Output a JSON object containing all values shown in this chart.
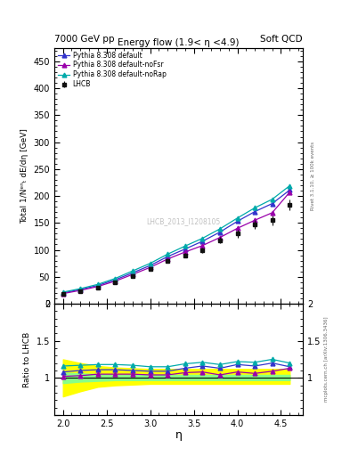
{
  "title_left": "7000 GeV pp",
  "title_right": "Soft QCD",
  "main_title": "Energy flow (1.9< η <4.9)",
  "ylabel_main": "Total 1/Nᵉⁿₜ dE/dη [GeV]",
  "ylabel_ratio": "Ratio to LHCB",
  "xlabel": "η",
  "rivet_label": "Rivet 3.1.10, ≥ 100k events",
  "mcplots_label": "mcplots.cern.ch [arXiv:1306.3436]",
  "watermark": "LHCB_2013_I1208105",
  "eta_data": [
    2.0,
    2.2,
    2.4,
    2.6,
    2.8,
    3.0,
    3.2,
    3.4,
    3.6,
    3.8,
    4.0,
    4.2,
    4.4,
    4.6
  ],
  "lhcb_y": [
    18.5,
    24.0,
    30.5,
    40.0,
    52.0,
    65.0,
    80.0,
    90.0,
    100.0,
    118.0,
    130.0,
    147.0,
    155.0,
    183.0
  ],
  "lhcb_yerr": [
    1.2,
    1.5,
    2.0,
    2.5,
    3.0,
    3.5,
    4.0,
    4.5,
    5.0,
    6.0,
    7.0,
    8.0,
    9.0,
    10.0
  ],
  "py_default_y": [
    20.0,
    26.5,
    34.0,
    44.5,
    57.5,
    71.0,
    87.5,
    101.5,
    116.0,
    133.0,
    153.0,
    171.0,
    186.0,
    211.0
  ],
  "py_nofsr_y": [
    18.8,
    24.8,
    32.0,
    42.0,
    54.5,
    67.5,
    83.0,
    96.0,
    108.0,
    123.0,
    140.0,
    155.0,
    169.0,
    207.0
  ],
  "py_norap_y": [
    21.5,
    28.0,
    36.0,
    47.0,
    61.0,
    75.0,
    92.0,
    107.0,
    121.5,
    139.0,
    159.0,
    178.0,
    194.0,
    219.0
  ],
  "ratio_default": [
    1.08,
    1.1,
    1.11,
    1.11,
    1.1,
    1.09,
    1.09,
    1.13,
    1.16,
    1.13,
    1.18,
    1.16,
    1.2,
    1.15
  ],
  "ratio_nofsr": [
    1.02,
    1.03,
    1.05,
    1.05,
    1.05,
    1.04,
    1.04,
    1.07,
    1.08,
    1.04,
    1.08,
    1.06,
    1.09,
    1.13
  ],
  "ratio_norap": [
    1.16,
    1.17,
    1.18,
    1.18,
    1.17,
    1.15,
    1.15,
    1.19,
    1.21,
    1.18,
    1.22,
    1.21,
    1.25,
    1.2
  ],
  "yellow_band_eta": [
    2.0,
    2.2,
    2.4,
    2.6,
    2.8,
    3.0,
    3.2,
    3.4,
    3.6,
    3.8,
    4.0,
    4.2,
    4.4,
    4.6
  ],
  "yellow_band_lo": [
    0.75,
    0.82,
    0.88,
    0.9,
    0.91,
    0.92,
    0.92,
    0.92,
    0.92,
    0.92,
    0.92,
    0.92,
    0.92,
    0.92
  ],
  "yellow_band_hi": [
    1.25,
    1.2,
    1.16,
    1.14,
    1.13,
    1.12,
    1.12,
    1.12,
    1.12,
    1.12,
    1.12,
    1.12,
    1.12,
    1.12
  ],
  "green_band_lo": [
    0.93,
    0.95,
    0.96,
    0.97,
    0.97,
    0.97,
    0.97,
    0.97,
    0.97,
    0.97,
    0.97,
    0.97,
    0.97,
    0.97
  ],
  "green_band_hi": [
    1.07,
    1.06,
    1.05,
    1.04,
    1.04,
    1.04,
    1.04,
    1.04,
    1.04,
    1.04,
    1.04,
    1.04,
    1.04,
    1.04
  ],
  "color_default": "#3333cc",
  "color_nofsr": "#9900aa",
  "color_norap": "#00aaaa",
  "color_lhcb": "#111111",
  "ylim_main": [
    0,
    475
  ],
  "ylim_ratio": [
    0.5,
    2.0
  ],
  "xlim": [
    1.9,
    4.75
  ],
  "yticks_main": [
    0,
    50,
    100,
    150,
    200,
    250,
    300,
    350,
    400,
    450
  ],
  "yticks_ratio": [
    0.5,
    1.0,
    1.5,
    2.0
  ]
}
